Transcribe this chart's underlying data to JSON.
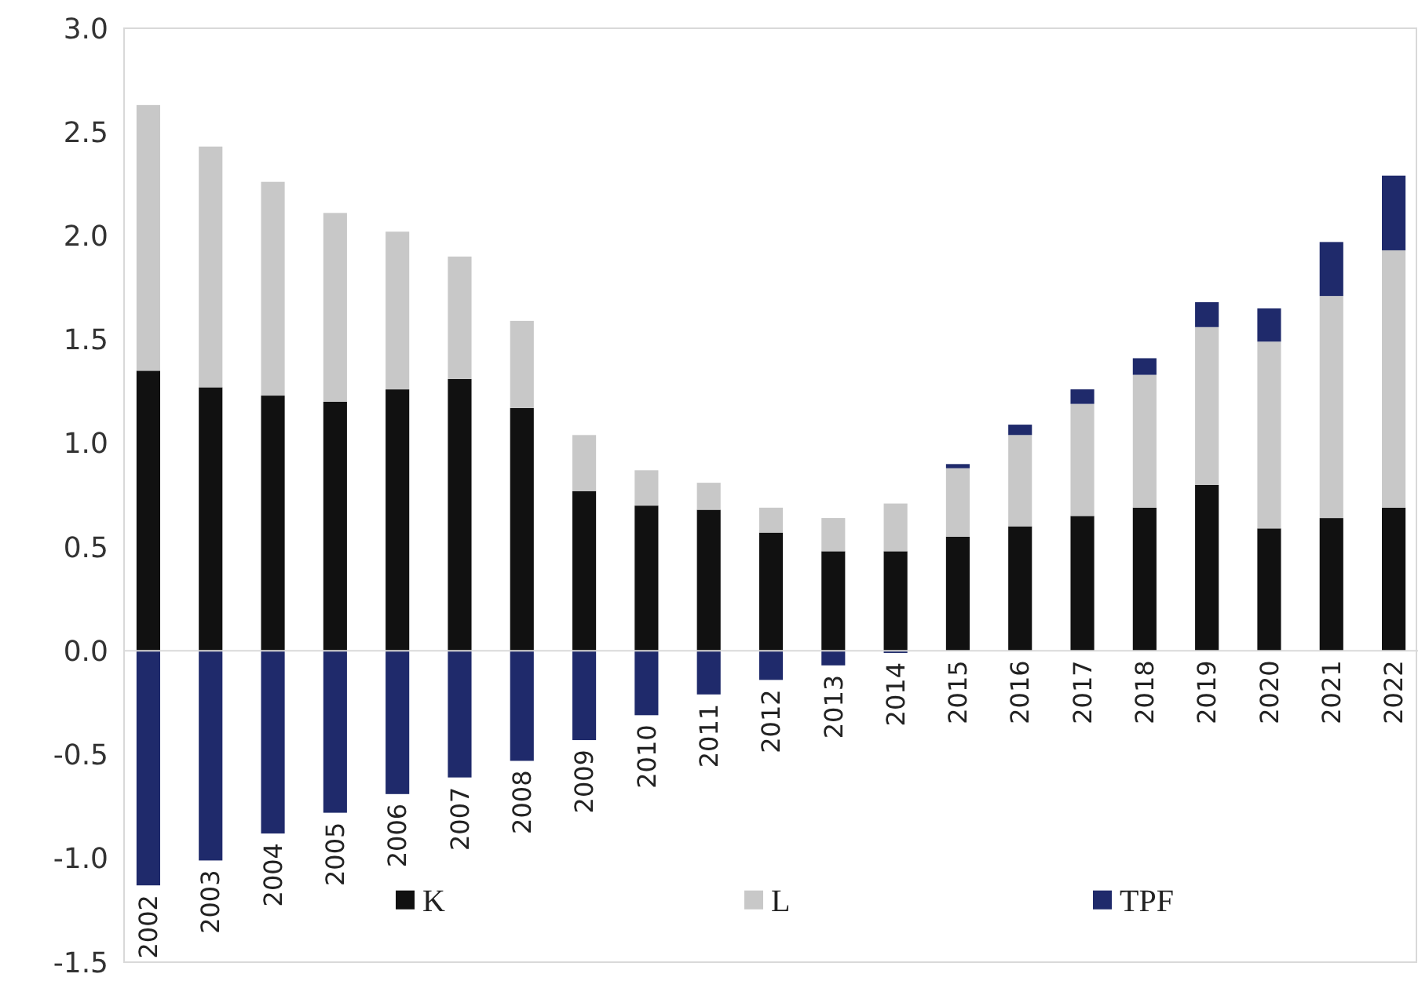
{
  "chart_data": {
    "type": "bar",
    "stacked": true,
    "categories": [
      "2002",
      "2003",
      "2004",
      "2005",
      "2006",
      "2007",
      "2008",
      "2009",
      "2010",
      "2011",
      "2012",
      "2013",
      "2014",
      "2015",
      "2016",
      "2017",
      "2018",
      "2019",
      "2020",
      "2021",
      "2022"
    ],
    "series": [
      {
        "name": "K",
        "color": "#111111",
        "values": [
          1.35,
          1.27,
          1.23,
          1.2,
          1.26,
          1.31,
          1.17,
          0.77,
          0.7,
          0.68,
          0.57,
          0.48,
          0.48,
          0.55,
          0.6,
          0.65,
          0.69,
          0.8,
          0.59,
          0.64,
          0.69
        ]
      },
      {
        "name": "L",
        "color": "#c8c8c8",
        "values": [
          1.28,
          1.16,
          1.03,
          0.91,
          0.76,
          0.59,
          0.42,
          0.27,
          0.17,
          0.13,
          0.12,
          0.16,
          0.23,
          0.33,
          0.44,
          0.54,
          0.64,
          0.76,
          0.9,
          1.07,
          1.24
        ]
      },
      {
        "name": "TPF",
        "color": "#1f2a6b",
        "values": [
          -1.13,
          -1.01,
          -0.88,
          -0.78,
          -0.69,
          -0.61,
          -0.53,
          -0.43,
          -0.31,
          -0.21,
          -0.14,
          -0.07,
          -0.01,
          0.02,
          0.05,
          0.07,
          0.08,
          0.12,
          0.16,
          0.26,
          0.36
        ]
      }
    ],
    "ylim": [
      -1.5,
      3
    ],
    "yticks": [
      {
        "value": -1.5,
        "label": "-1.5"
      },
      {
        "value": -1,
        "label": "-1.0"
      },
      {
        "value": -0.5,
        "label": "-0.5"
      },
      {
        "value": 0,
        "label": "0.0"
      },
      {
        "value": 0.5,
        "label": "0.5"
      },
      {
        "value": 1,
        "label": "1.0"
      },
      {
        "value": 1.5,
        "label": "1.5"
      },
      {
        "value": 2,
        "label": "2.0"
      },
      {
        "value": 2.5,
        "label": "2.5"
      },
      {
        "value": 3,
        "label": "3.0"
      }
    ],
    "grid": false,
    "legend": "bottom"
  }
}
